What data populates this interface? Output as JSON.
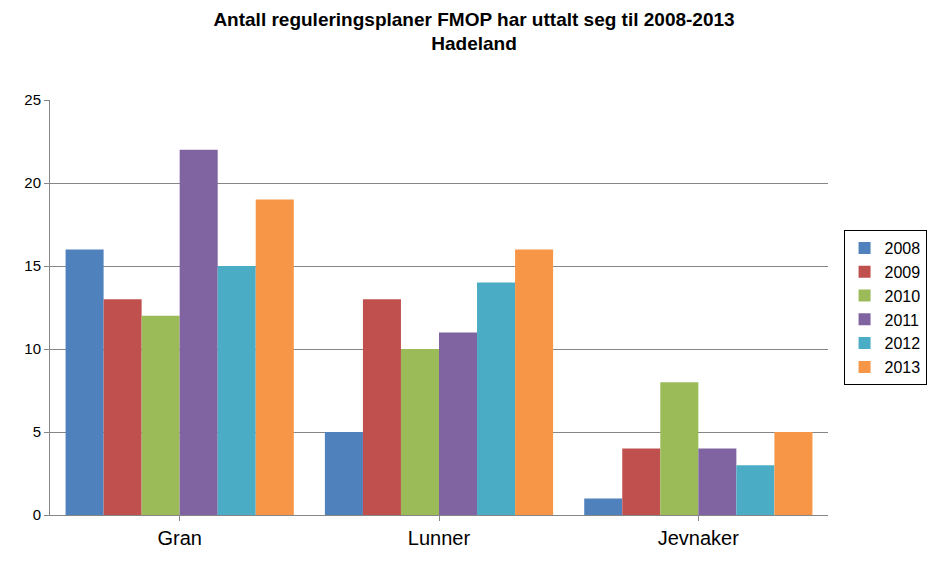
{
  "chart_data": {
    "type": "bar",
    "title": "Antall reguleringsplaner FMOP har uttalt seg til 2008-2013\nHadeland",
    "categories": [
      "Gran",
      "Lunner",
      "Jevnaker"
    ],
    "series": [
      {
        "name": "2008",
        "color": "#4f81bd",
        "values": [
          16,
          5,
          1
        ]
      },
      {
        "name": "2009",
        "color": "#c0504d",
        "values": [
          13,
          13,
          4
        ]
      },
      {
        "name": "2010",
        "color": "#9bbb59",
        "values": [
          12,
          10,
          8
        ]
      },
      {
        "name": "2011",
        "color": "#8064a2",
        "values": [
          22,
          11,
          4
        ]
      },
      {
        "name": "2012",
        "color": "#4bacc6",
        "values": [
          15,
          14,
          3
        ]
      },
      {
        "name": "2013",
        "color": "#f79646",
        "values": [
          19,
          16,
          5
        ]
      }
    ],
    "ylim": [
      0,
      25
    ],
    "yticks": [
      0,
      5,
      10,
      15,
      20,
      25
    ],
    "grid": true,
    "legend": "right"
  }
}
